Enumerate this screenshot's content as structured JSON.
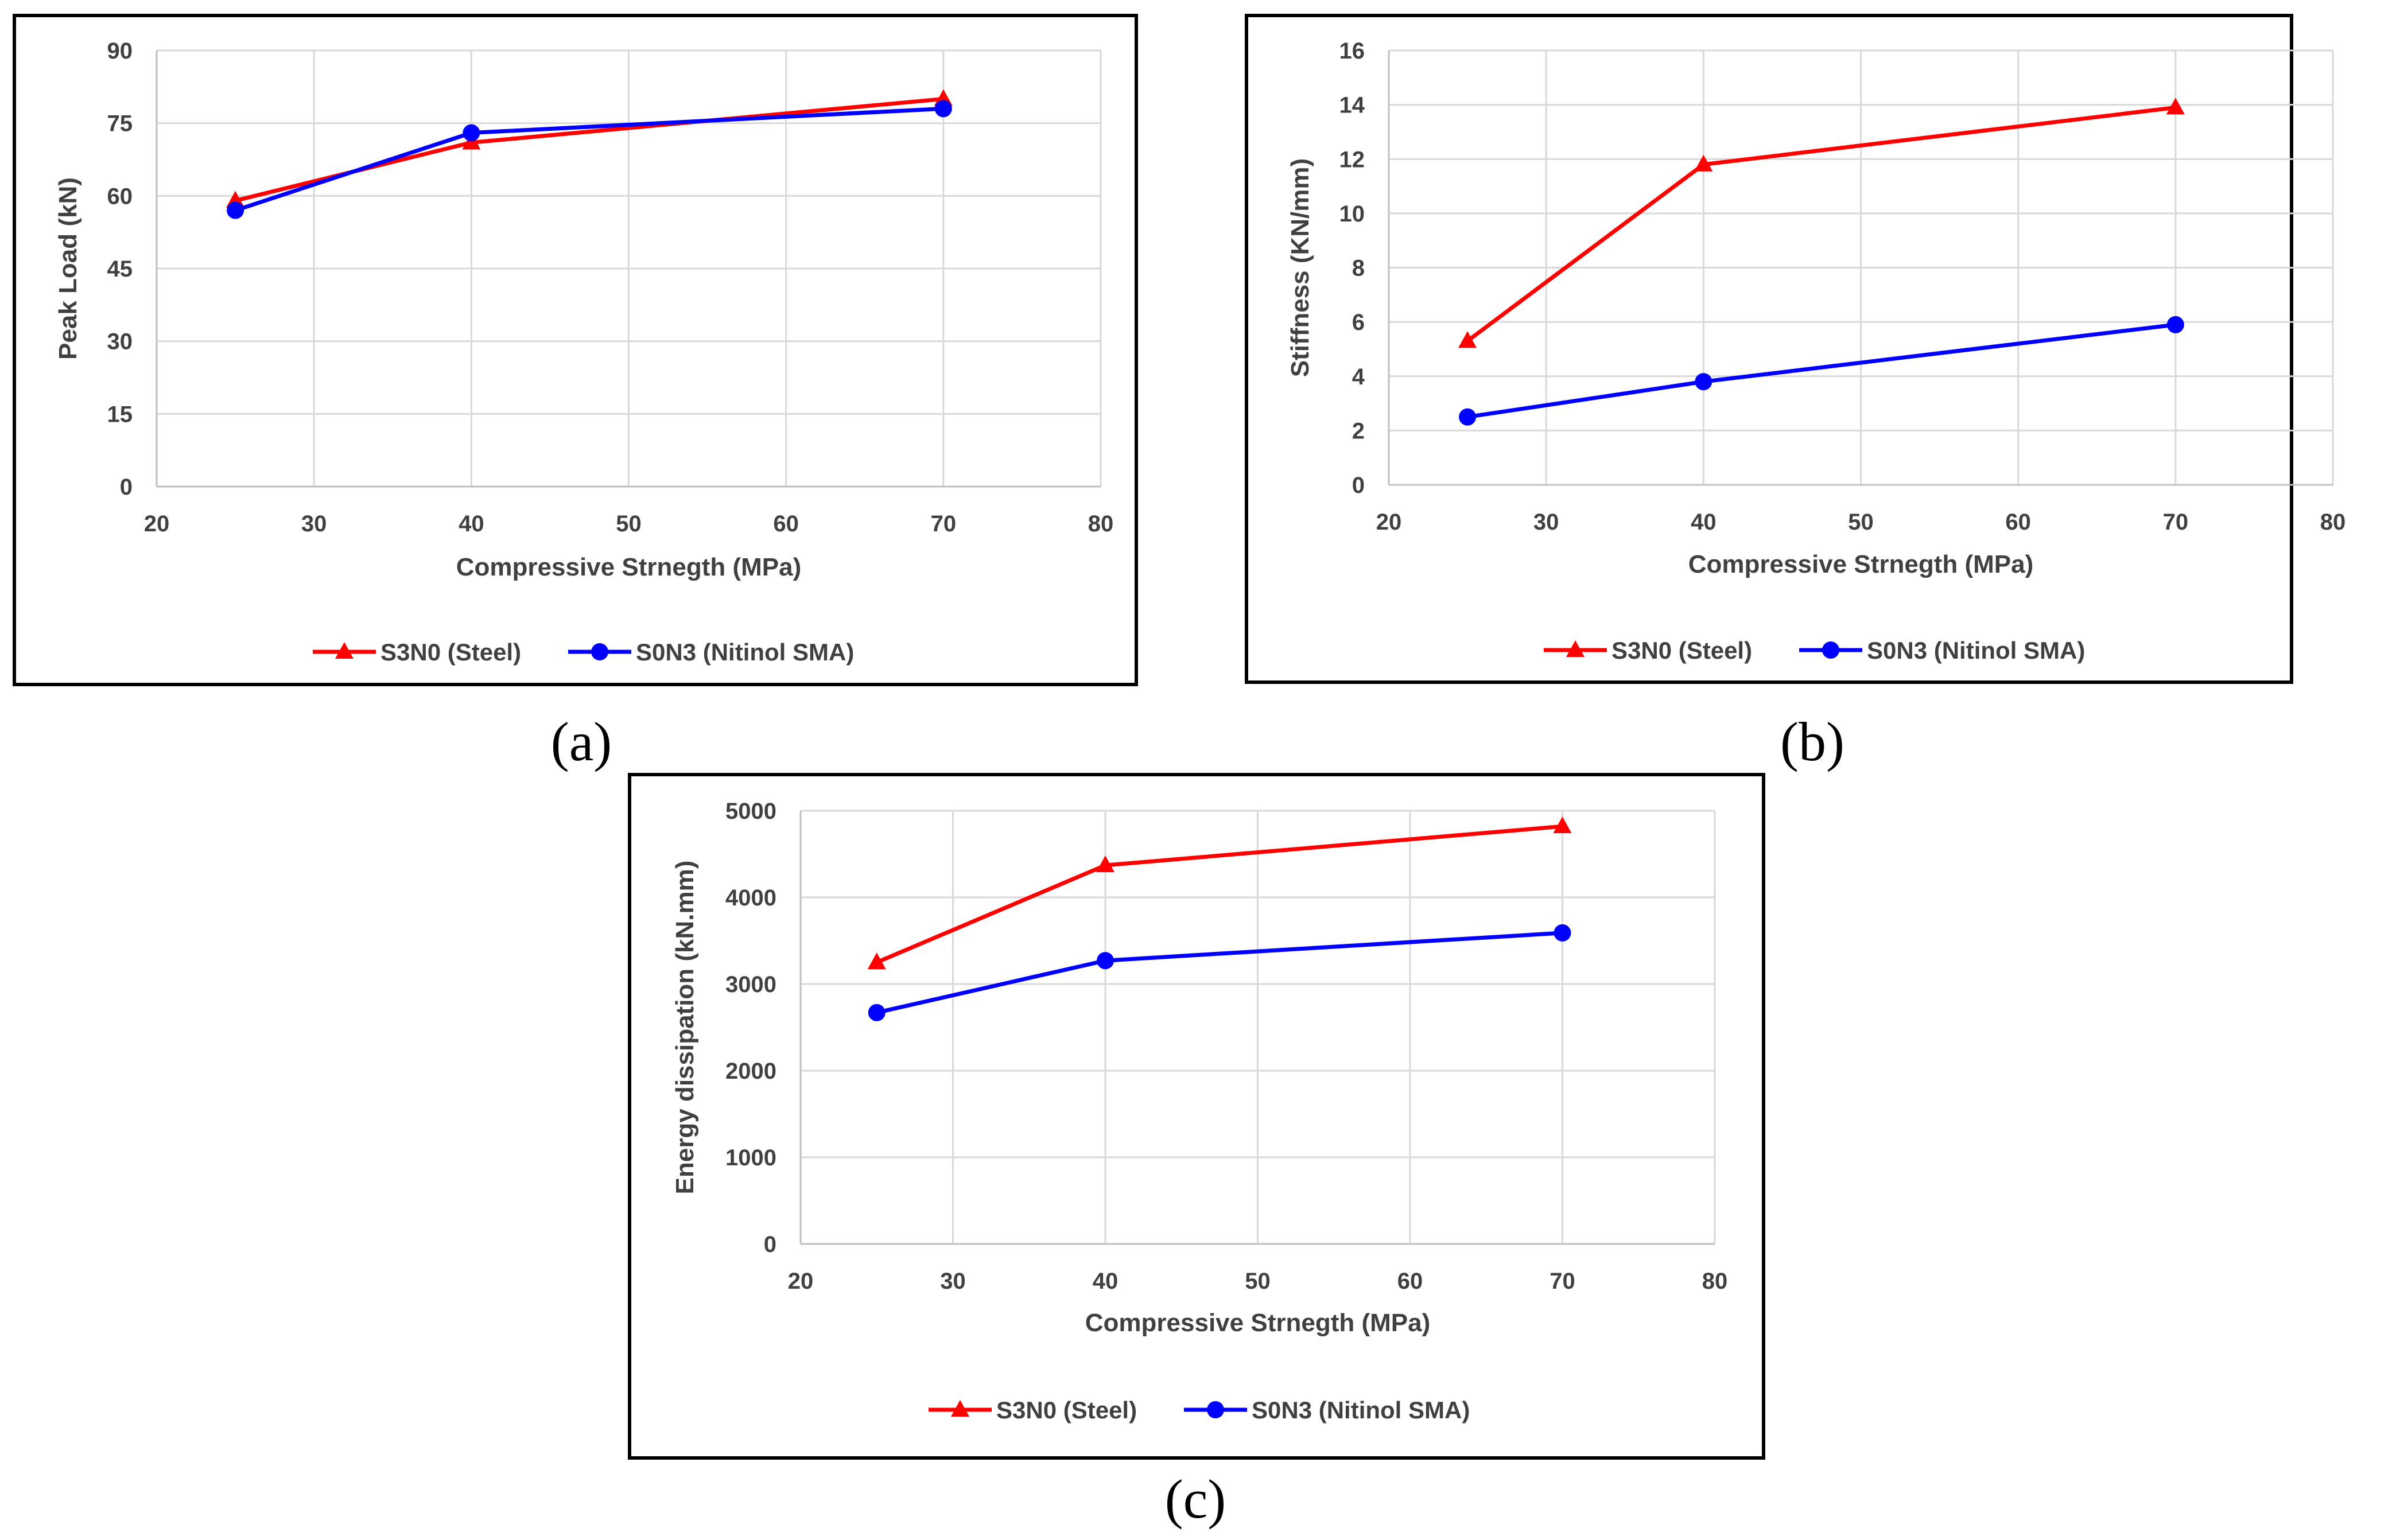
{
  "chart_data": [
    {
      "type": "line",
      "caption": "(a)",
      "xlabel": "Compressive Strnegth (MPa)",
      "ylabel": "Peak Load (kN)",
      "xlim": [
        20,
        80
      ],
      "ylim": [
        0,
        90
      ],
      "xticks": [
        20,
        30,
        40,
        50,
        60,
        70,
        80
      ],
      "yticks": [
        0,
        15,
        30,
        45,
        60,
        75,
        90
      ],
      "grid": true,
      "legend_position": "bottom",
      "series": [
        {
          "name": "S3N0 (Steel)",
          "color": "#ff0000",
          "marker": "triangle",
          "x": [
            25,
            40,
            70
          ],
          "y": [
            59,
            71,
            80
          ]
        },
        {
          "name": "S0N3 (Nitinol SMA)",
          "color": "#0000ff",
          "marker": "circle",
          "x": [
            25,
            40,
            70
          ],
          "y": [
            57,
            73,
            78
          ]
        }
      ]
    },
    {
      "type": "line",
      "caption": "(b)",
      "xlabel": "Compressive Strnegth (MPa)",
      "ylabel": "Stiffness (KN/mm)",
      "xlim": [
        20,
        80
      ],
      "ylim": [
        0,
        16
      ],
      "xticks": [
        20,
        30,
        40,
        50,
        60,
        70,
        80
      ],
      "yticks": [
        0,
        2,
        4,
        6,
        8,
        10,
        12,
        14,
        16
      ],
      "grid": true,
      "legend_position": "bottom",
      "series": [
        {
          "name": "S3N0 (Steel)",
          "color": "#ff0000",
          "marker": "triangle",
          "x": [
            25,
            40,
            70
          ],
          "y": [
            5.3,
            11.8,
            13.9
          ]
        },
        {
          "name": "S0N3 (Nitinol SMA)",
          "color": "#0000ff",
          "marker": "circle",
          "x": [
            25,
            40,
            70
          ],
          "y": [
            2.5,
            3.8,
            5.9
          ]
        }
      ]
    },
    {
      "type": "line",
      "caption": "(c)",
      "xlabel": "Compressive Strnegth (MPa)",
      "ylabel": "Energy dissipation  (kN.mm)",
      "xlim": [
        20,
        80
      ],
      "ylim": [
        0,
        5000
      ],
      "xticks": [
        20,
        30,
        40,
        50,
        60,
        70,
        80
      ],
      "yticks": [
        0,
        1000,
        2000,
        3000,
        4000,
        5000
      ],
      "grid": true,
      "legend_position": "bottom",
      "series": [
        {
          "name": "S3N0 (Steel)",
          "color": "#ff0000",
          "marker": "triangle",
          "x": [
            25,
            40,
            70
          ],
          "y": [
            3250,
            4370,
            4820
          ]
        },
        {
          "name": "S0N3 (Nitinol SMA)",
          "color": "#0000ff",
          "marker": "circle",
          "x": [
            25,
            40,
            70
          ],
          "y": [
            2670,
            3270,
            3590
          ]
        }
      ]
    }
  ]
}
